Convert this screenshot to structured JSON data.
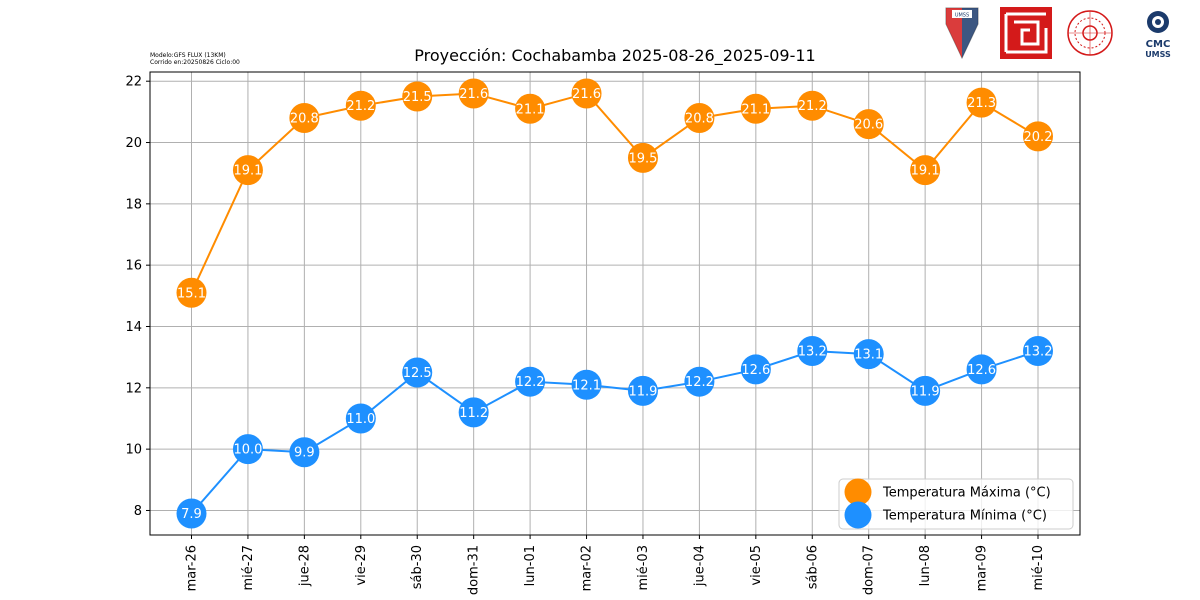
{
  "header": {
    "model_line": "Modelo:GFS FLUX (13KM)",
    "run_line": "Corrido en:20250826 Ciclo:00",
    "title": "Proyección: Cochabamba 2025-08-26_2025-09-11"
  },
  "logos": {
    "umss": "UMSS",
    "cmc_top": "CMC",
    "cmc_bottom": "UMSS"
  },
  "colors": {
    "max": "#FF8C00",
    "min": "#1E90FF",
    "grid": "#b0b0b0",
    "logo_red": "#d41a1a",
    "logo_navy": "#1b3a6b"
  },
  "chart_data": {
    "type": "line",
    "title": "Proyección: Cochabamba 2025-08-26_2025-09-11",
    "xlabel": "",
    "ylabel": "",
    "categories": [
      "mar-26",
      "mié-27",
      "jue-28",
      "vie-29",
      "sáb-30",
      "dom-31",
      "lun-01",
      "mar-02",
      "mié-03",
      "jue-04",
      "vie-05",
      "sáb-06",
      "dom-07",
      "lun-08",
      "mar-09",
      "mié-10"
    ],
    "series": [
      {
        "name": "Temperatura Máxima  (°C)",
        "color": "#FF8C00",
        "values": [
          15.1,
          19.1,
          20.8,
          21.2,
          21.5,
          21.6,
          21.1,
          21.6,
          19.5,
          20.8,
          21.1,
          21.2,
          20.6,
          19.1,
          21.3,
          20.2
        ]
      },
      {
        "name": "Temperatura Mínima  (°C)",
        "color": "#1E90FF",
        "values": [
          7.9,
          10.0,
          9.9,
          11.0,
          12.5,
          11.2,
          12.2,
          12.1,
          11.9,
          12.2,
          12.6,
          13.2,
          13.1,
          11.9,
          12.6,
          13.2
        ]
      }
    ],
    "ylim": [
      7.2,
      22.3
    ],
    "yticks": [
      8,
      10,
      12,
      14,
      16,
      18,
      20,
      22
    ],
    "grid": true,
    "legend": "bottom-right"
  }
}
